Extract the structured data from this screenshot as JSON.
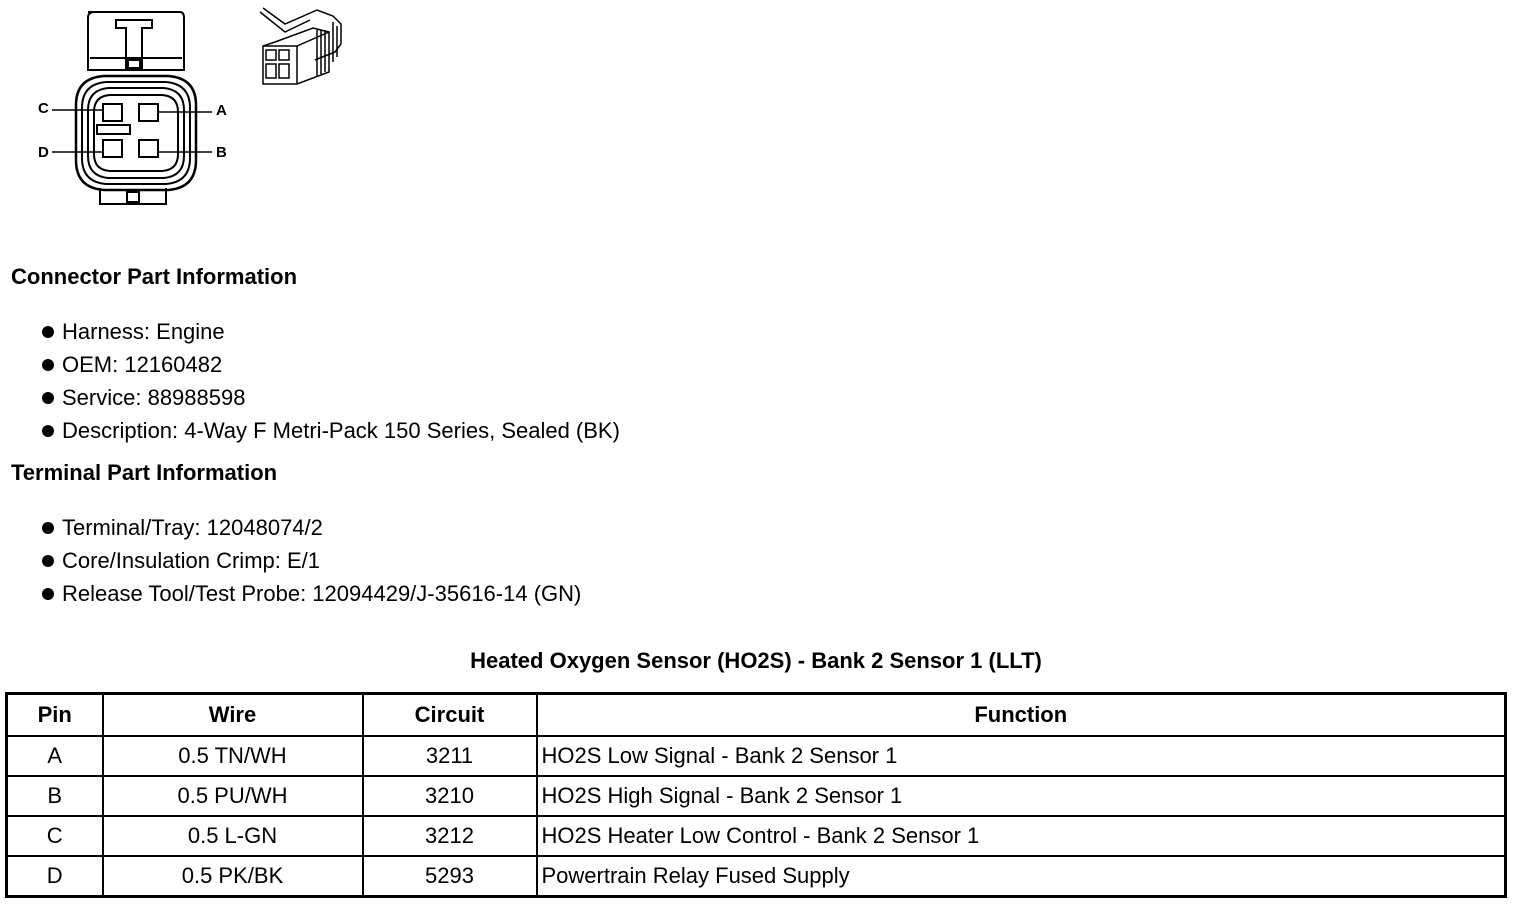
{
  "connector_diagram": {
    "pin_labels": [
      "C",
      "A",
      "D",
      "B"
    ]
  },
  "connector_part": {
    "title": "Connector Part Information",
    "items": [
      "Harness: Engine",
      "OEM: 12160482",
      "Service: 88988598",
      "Description: 4-Way F Metri-Pack 150 Series, Sealed (BK)"
    ]
  },
  "terminal_part": {
    "title": "Terminal Part Information",
    "items": [
      "Terminal/Tray: 12048074/2",
      "Core/Insulation Crimp: E/1",
      "Release Tool/Test Probe: 12094429/J-35616-14 (GN)"
    ]
  },
  "pinout": {
    "caption": "Heated Oxygen Sensor (HO2S) - Bank 2 Sensor 1 (LLT)",
    "headers": [
      "Pin",
      "Wire",
      "Circuit",
      "Function"
    ],
    "rows": [
      [
        "A",
        "0.5 TN/WH",
        "3211",
        "HO2S Low Signal - Bank 2 Sensor 1"
      ],
      [
        "B",
        "0.5 PU/WH",
        "3210",
        "HO2S High Signal - Bank 2 Sensor 1"
      ],
      [
        "C",
        "0.5 L-GN",
        "3212",
        "HO2S Heater Low Control - Bank 2 Sensor 1"
      ],
      [
        "D",
        "0.5 PK/BK",
        "5293",
        "Powertrain Relay Fused Supply"
      ]
    ]
  }
}
